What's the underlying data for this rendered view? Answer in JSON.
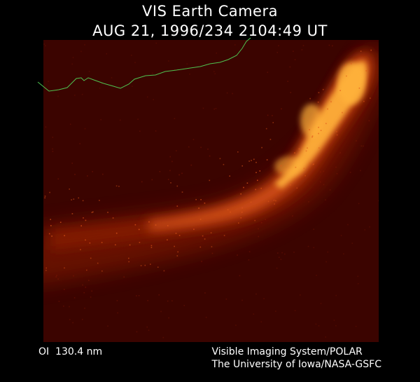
{
  "header": {
    "title": "VIS Earth Camera",
    "timestamp": "AUG 21, 1996/234 2104:49 UT"
  },
  "image": {
    "background_color": "#3b0400",
    "glow_core_color": "#ffb23a",
    "glow_mid_color": "#e0581a",
    "glow_outer_color": "#8a1d05",
    "limb_line_color": "#4fc24f"
  },
  "footer": {
    "filter_label": "OI  130.4 nm",
    "credit_line_1": "Visible Imaging System/POLAR",
    "credit_line_2": "The University of Iowa/NASA-GSFC"
  }
}
